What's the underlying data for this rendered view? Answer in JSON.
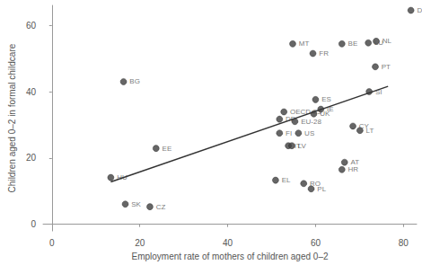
{
  "chart_data": {
    "type": "scatter",
    "x_label": "Employment rate of mothers of children aged 0–2",
    "y_label": "Children aged 0–2 in formal childcare",
    "labels": [
      "DK",
      "NL",
      "LU",
      "BE",
      "MT",
      "FR",
      "PT",
      "BG",
      "ES",
      "SI",
      "OECD-23",
      "DE",
      "EU-28",
      "UK",
      "IE",
      "FI",
      "US",
      "CY",
      "LT",
      "IT",
      "LV",
      "EE",
      "HU",
      "AT",
      "HR",
      "EL",
      "RO",
      "PL",
      "SK",
      "CZ"
    ],
    "x": [
      81.7,
      73.8,
      72.0,
      66.0,
      54.8,
      59.4,
      73.6,
      16.3,
      60.0,
      72.2,
      52.8,
      51.8,
      55.3,
      59.6,
      61.2,
      51.8,
      56.1,
      68.5,
      70.1,
      53.8,
      54.6,
      23.7,
      13.4,
      66.6,
      66.0,
      50.9,
      57.3,
      59.0,
      16.7,
      22.3
    ],
    "values": [
      64.5,
      55.2,
      54.7,
      54.4,
      54.4,
      51.5,
      47.5,
      43.0,
      37.6,
      40.0,
      33.9,
      31.7,
      31.0,
      33.3,
      34.7,
      27.5,
      27.5,
      29.6,
      28.3,
      23.7,
      23.7,
      22.9,
      14.1,
      18.7,
      16.5,
      13.3,
      12.3,
      10.7,
      6.1,
      5.3
    ],
    "trend": {
      "x": [
        13.4,
        76.5
      ],
      "values": [
        12.8,
        41.6
      ]
    },
    "color": "#404040",
    "xlim": [
      -2,
      83
    ],
    "xticks": [
      0,
      20,
      40,
      60,
      80
    ],
    "ylim": [
      -2,
      66
    ],
    "yticks": [
      0,
      20,
      40,
      60
    ],
    "grid": false,
    "data_labels": true
  }
}
